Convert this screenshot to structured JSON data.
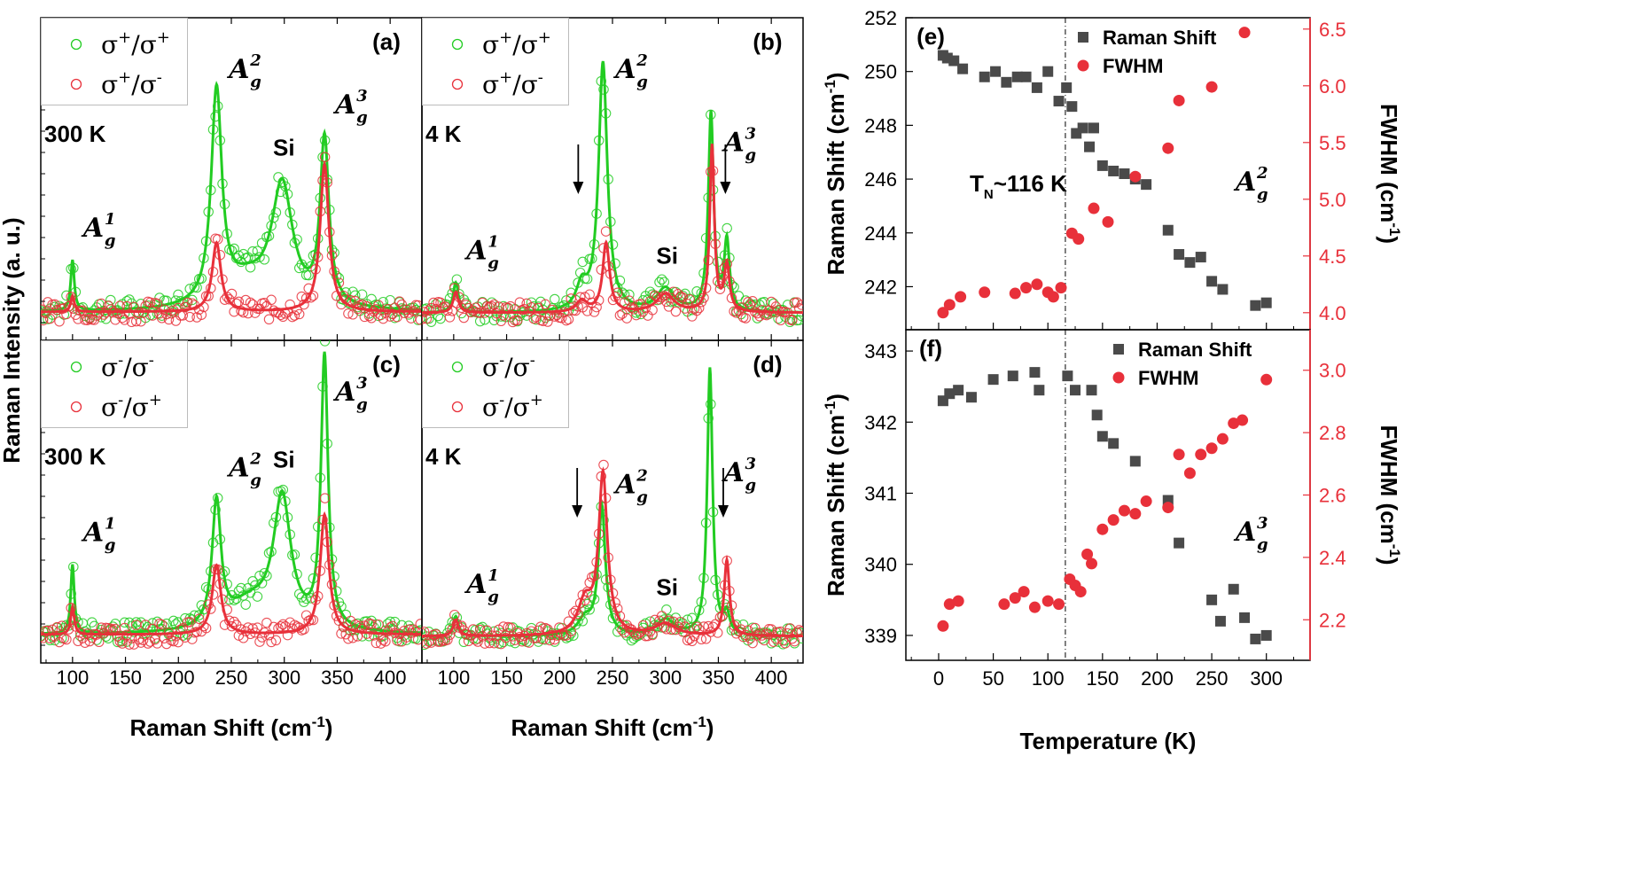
{
  "chart_data": [
    {
      "id": "a",
      "type": "scatter",
      "panel_label": "(a)",
      "temperature_label": "300 K",
      "xlim": [
        70,
        430
      ],
      "x_ticks": [
        "100",
        "150",
        "200",
        "250",
        "300",
        "350",
        "400"
      ],
      "legend": [
        {
          "name": "σ+/σ+",
          "sup1": "+",
          "sup2": "+"
        },
        {
          "name": "σ+/σ-",
          "sup1": "+",
          "sup2": "-"
        }
      ],
      "series": [
        {
          "name": "σ+/σ+",
          "color": "#22cc22",
          "baseline": 0.0,
          "peaks": [
            [
              100,
              2,
              1.1
            ],
            [
              236,
              6,
              4.6
            ],
            [
              265,
              25,
              0.55
            ],
            [
              298,
              12,
              2.6
            ],
            [
              338,
              5,
              3.6
            ]
          ]
        },
        {
          "name": "σ+/σ-",
          "color": "#e8303a",
          "baseline": 0.0,
          "peaks": [
            [
              100,
              2,
              0.35
            ],
            [
              236,
              5,
              1.5
            ],
            [
              338,
              5,
              3.2
            ]
          ]
        }
      ],
      "annotations": [
        {
          "mode": "A",
          "sub": "g",
          "sup": "1",
          "x": 100
        },
        {
          "mode": "A",
          "sub": "g",
          "sup": "2",
          "x": 236
        },
        {
          "text": "Si",
          "x": 298
        },
        {
          "mode": "A",
          "sub": "g",
          "sup": "3",
          "x": 338
        }
      ],
      "ylabel": "Raman Intensity (a. u.)"
    },
    {
      "id": "b",
      "type": "scatter",
      "panel_label": "(b)",
      "temperature_label": "4 K",
      "xlim": [
        70,
        430
      ],
      "x_ticks": [
        "100",
        "150",
        "200",
        "250",
        "300",
        "350",
        "400"
      ],
      "legend": [
        {
          "name": "σ+/σ+",
          "sup1": "+",
          "sup2": "+"
        },
        {
          "name": "σ+/σ-",
          "sup1": "+",
          "sup2": "-"
        }
      ],
      "series": [
        {
          "name": "σ+/σ+",
          "color": "#22cc22",
          "baseline": 0.0,
          "peaks": [
            [
              102,
              3,
              0.65
            ],
            [
              221,
              6,
              0.5
            ],
            [
              241,
              5,
              5.4
            ],
            [
              300,
              10,
              0.5
            ],
            [
              343,
              3,
              4.3
            ],
            [
              358,
              3,
              1.5
            ]
          ]
        },
        {
          "name": "σ+/σ-",
          "color": "#e8303a",
          "baseline": 0.0,
          "peaks": [
            [
              102,
              3,
              0.45
            ],
            [
              221,
              6,
              0.25
            ],
            [
              244,
              4,
              1.5
            ],
            [
              300,
              10,
              0.4
            ],
            [
              344,
              2.5,
              3.6
            ],
            [
              358,
              3,
              1.0
            ]
          ]
        }
      ],
      "annotations": [
        {
          "mode": "A",
          "sub": "g",
          "sup": "1",
          "x": 102
        },
        {
          "mode": "A",
          "sub": "g",
          "sup": "2",
          "x": 241
        },
        {
          "text": "Si",
          "x": 300
        },
        {
          "mode": "A",
          "sub": "g",
          "sup": "3",
          "x": 345
        }
      ],
      "arrows_at": [
        221,
        360
      ]
    },
    {
      "id": "c",
      "type": "scatter",
      "panel_label": "(c)",
      "temperature_label": "300 K",
      "xlim": [
        70,
        430
      ],
      "x_ticks": [
        "100",
        "150",
        "200",
        "250",
        "300",
        "350",
        "400"
      ],
      "legend": [
        {
          "name": "σ-/σ-",
          "sup1": "-",
          "sup2": "-"
        },
        {
          "name": "σ-/σ+",
          "sup1": "-",
          "sup2": "+"
        }
      ],
      "series": [
        {
          "name": "σ-/σ-",
          "color": "#22cc22",
          "baseline": 0.0,
          "peaks": [
            [
              100,
              2,
              1.5
            ],
            [
              236,
              5,
              2.7
            ],
            [
              268,
              25,
              0.6
            ],
            [
              298,
              10,
              2.8
            ],
            [
              338,
              4,
              5.9
            ]
          ]
        },
        {
          "name": "σ-/σ+",
          "color": "#e8303a",
          "baseline": 0.0,
          "peaks": [
            [
              100,
              2,
              0.6
            ],
            [
              236,
              5,
              1.5
            ],
            [
              338,
              5,
              2.6
            ]
          ]
        }
      ],
      "annotations": [
        {
          "mode": "A",
          "sub": "g",
          "sup": "1",
          "x": 100
        },
        {
          "mode": "A",
          "sub": "g",
          "sup": "2",
          "x": 236
        },
        {
          "text": "Si",
          "x": 298
        },
        {
          "mode": "A",
          "sub": "g",
          "sup": "3",
          "x": 338
        }
      ]
    },
    {
      "id": "d",
      "type": "scatter",
      "panel_label": "(d)",
      "temperature_label": "4 K",
      "xlim": [
        70,
        430
      ],
      "x_ticks": [
        "100",
        "150",
        "200",
        "250",
        "300",
        "350",
        "400"
      ],
      "legend": [
        {
          "name": "σ-/σ-",
          "sup1": "-",
          "sup2": "-"
        },
        {
          "name": "σ-/σ+",
          "sup1": "-",
          "sup2": "+"
        }
      ],
      "series": [
        {
          "name": "σ-/σ-",
          "color": "#22cc22",
          "baseline": 0.0,
          "peaks": [
            [
              102,
              3,
              0.5
            ],
            [
              224,
              8,
              0.4
            ],
            [
              240,
              4,
              3.2
            ],
            [
              300,
              10,
              0.4
            ],
            [
              342,
              3,
              6.7
            ],
            [
              358,
              3,
              0.5
            ]
          ]
        },
        {
          "name": "σ-/σ+",
          "color": "#e8303a",
          "baseline": 0.0,
          "peaks": [
            [
              102,
              3,
              0.4
            ],
            [
              224,
              8,
              0.8
            ],
            [
              241,
              5,
              4.0
            ],
            [
              300,
              12,
              0.3
            ],
            [
              358,
              3,
              1.9
            ]
          ]
        }
      ],
      "annotations": [
        {
          "mode": "A",
          "sub": "g",
          "sup": "1",
          "x": 102
        },
        {
          "mode": "A",
          "sub": "g",
          "sup": "2",
          "x": 241
        },
        {
          "text": "Si",
          "x": 300
        },
        {
          "mode": "A",
          "sub": "g",
          "sup": "3",
          "x": 345
        }
      ],
      "arrows_at": [
        220,
        358
      ],
      "xlabel": "Raman Shift (cm-1)"
    },
    {
      "id": "e",
      "type": "scatter",
      "panel_label": "(e)",
      "xlim": [
        -30,
        340
      ],
      "ylim": [
        240.4,
        252.0
      ],
      "y2lim": [
        3.85,
        6.6
      ],
      "y_ticks": [
        "242",
        "244",
        "246",
        "248",
        "250",
        "252"
      ],
      "y2_ticks": [
        "4.0",
        "4.5",
        "5.0",
        "5.5",
        "6.0",
        "6.5"
      ],
      "ylabel": "Raman Shift (cm-1)",
      "y2label": "FWHM (cm-1)",
      "vline_x": 116,
      "vline_label": "TN~116 K",
      "mode": {
        "mode": "A",
        "sub": "g",
        "sup": "2"
      },
      "legend": [
        {
          "name": "Raman Shift",
          "marker": "square"
        },
        {
          "name": "FWHM",
          "marker": "circle"
        }
      ],
      "series": [
        {
          "name": "Raman Shift",
          "color": "#555555",
          "marker": "square",
          "axis": "left",
          "x": [
            4,
            8,
            14,
            22,
            42,
            52,
            62,
            72,
            80,
            90,
            100,
            110,
            117,
            122,
            126,
            132,
            138,
            142,
            150,
            160,
            170,
            180,
            190,
            210,
            220,
            230,
            240,
            250,
            260,
            290,
            300
          ],
          "y": [
            250.6,
            250.5,
            250.4,
            250.1,
            249.8,
            250.0,
            249.6,
            249.8,
            249.8,
            249.4,
            250.0,
            248.9,
            249.4,
            248.7,
            247.7,
            247.9,
            247.2,
            247.9,
            246.5,
            246.3,
            246.2,
            246.0,
            245.8,
            244.1,
            243.2,
            242.9,
            243.1,
            242.2,
            241.9,
            241.3,
            241.4
          ]
        },
        {
          "name": "FWHM",
          "color": "#e8303a",
          "marker": "circle",
          "axis": "right",
          "x": [
            4,
            10,
            20,
            42,
            70,
            80,
            90,
            100,
            105,
            112,
            122,
            128,
            142,
            155,
            180,
            210,
            220,
            250,
            280
          ],
          "y": [
            4.0,
            4.07,
            4.14,
            4.18,
            4.17,
            4.22,
            4.25,
            4.18,
            4.14,
            4.22,
            4.7,
            4.65,
            4.92,
            4.8,
            5.2,
            5.45,
            5.87,
            5.99,
            6.47
          ]
        }
      ]
    },
    {
      "id": "f",
      "type": "scatter",
      "panel_label": "(f)",
      "xlim": [
        -30,
        340
      ],
      "ylim": [
        338.65,
        343.3
      ],
      "y2lim": [
        2.07,
        3.13
      ],
      "x_ticks": [
        "0",
        "50",
        "100",
        "150",
        "200",
        "250",
        "300"
      ],
      "y_ticks": [
        "339",
        "340",
        "341",
        "342",
        "343"
      ],
      "y2_ticks": [
        "2.2",
        "2.4",
        "2.6",
        "2.8",
        "3.0"
      ],
      "ylabel": "Raman Shift (cm-1)",
      "y2label": "FWHM (cm-1)",
      "xlabel": "Temperature (K)",
      "vline_x": 116,
      "mode": {
        "mode": "A",
        "sub": "g",
        "sup": "3"
      },
      "legend": [
        {
          "name": "Raman Shift",
          "marker": "square"
        },
        {
          "name": "FWHM",
          "marker": "circle"
        }
      ],
      "series": [
        {
          "name": "Raman Shift",
          "color": "#555555",
          "marker": "square",
          "axis": "left",
          "x": [
            4,
            10,
            18,
            30,
            50,
            68,
            88,
            92,
            118,
            125,
            140,
            145,
            150,
            160,
            180,
            210,
            220,
            250,
            258,
            270,
            280,
            290,
            300
          ],
          "y": [
            342.3,
            342.4,
            342.45,
            342.35,
            342.6,
            342.65,
            342.7,
            342.45,
            342.65,
            342.45,
            342.45,
            342.1,
            341.8,
            341.7,
            341.45,
            340.9,
            340.3,
            339.5,
            339.2,
            339.65,
            339.25,
            338.95,
            339.0
          ]
        },
        {
          "name": "FWHM",
          "color": "#e8303a",
          "marker": "circle",
          "axis": "right",
          "x": [
            4,
            10,
            18,
            60,
            70,
            78,
            88,
            100,
            110,
            120,
            125,
            130,
            136,
            140,
            150,
            160,
            170,
            180,
            190,
            210,
            220,
            230,
            240,
            250,
            260,
            270,
            278,
            300
          ],
          "y": [
            2.18,
            2.25,
            2.26,
            2.25,
            2.27,
            2.29,
            2.24,
            2.26,
            2.25,
            2.33,
            2.31,
            2.29,
            2.41,
            2.38,
            2.49,
            2.52,
            2.55,
            2.54,
            2.58,
            2.56,
            2.73,
            2.67,
            2.73,
            2.75,
            2.78,
            2.83,
            2.84,
            2.97
          ]
        }
      ]
    }
  ]
}
